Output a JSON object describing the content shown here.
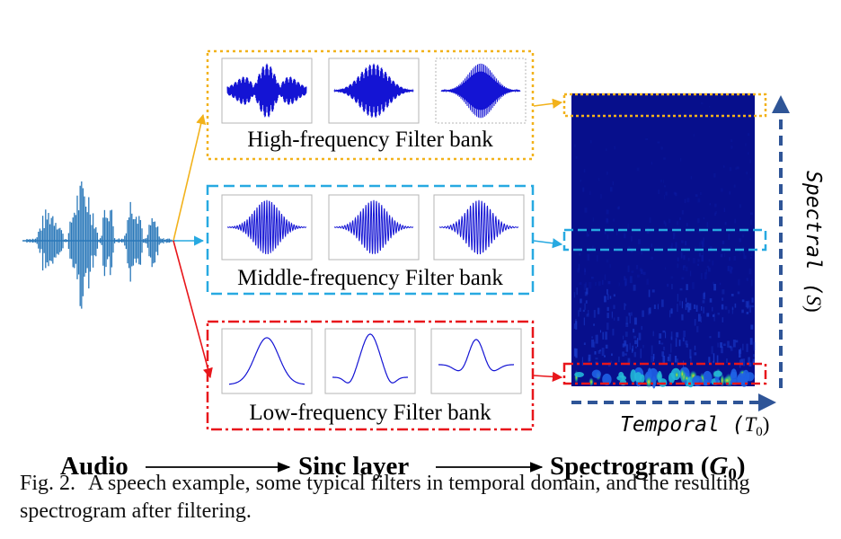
{
  "figure": {
    "banks": [
      {
        "label": "High-frequency Filter bank",
        "color": "#f2b21b",
        "kind": "high"
      },
      {
        "label": "Middle-frequency Filter bank",
        "color": "#27a9e1",
        "kind": "middle"
      },
      {
        "label": "Low-frequency Filter bank",
        "color": "#e8161b",
        "kind": "low"
      }
    ],
    "pipeline": {
      "audio": "Audio",
      "sinc": "Sinc layer",
      "spectrogram": "Spectrogram (",
      "g": "G",
      "g_sub": "0",
      "close": ")"
    },
    "axes": {
      "spectral": "Spectral (",
      "spectral_sym": "S",
      "spectral_close": ")",
      "temporal": "Temporal (",
      "temporal_sym": "T",
      "temporal_sub": "0",
      "temporal_close": ")"
    },
    "colors": {
      "waveform": "#2a78b9",
      "filter": "#1414d4",
      "spectrogram_bg": "#070f8c",
      "axis_arrow": "#2f5597"
    }
  },
  "caption": {
    "label": "Fig. 2.",
    "text": "A speech example, some typical filters in temporal domain, and the resulting spectrogram after filtering."
  }
}
